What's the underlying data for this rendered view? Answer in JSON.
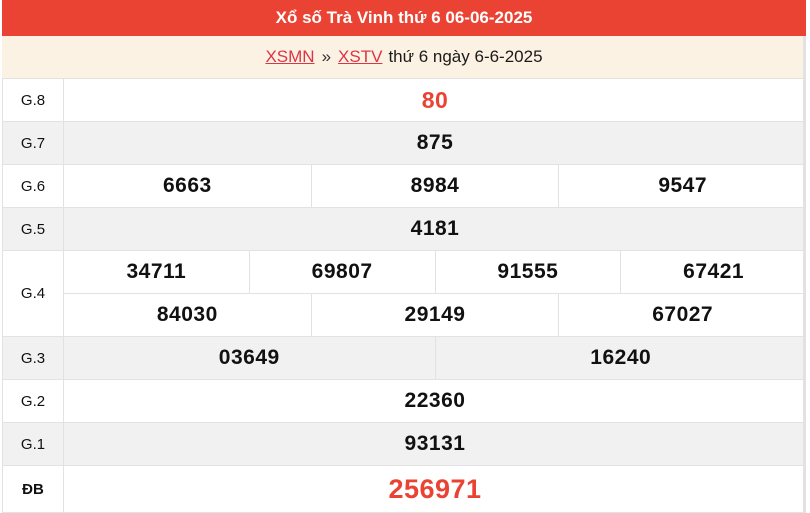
{
  "header": {
    "title": "Xổ số Trà Vinh thứ 6 06-06-2025"
  },
  "breadcrumb": {
    "links": [
      {
        "label": "XSMN"
      },
      {
        "label": "XSTV"
      }
    ],
    "separator": "»",
    "suffix": "thứ 6 ngày 6-6-2025"
  },
  "colors": {
    "header_red": "#ea4334",
    "highlight_red": "#ea4334",
    "link_red": "#dc3545",
    "breadcrumb_bg": "#fcf2e4",
    "alt_row_bg": "#f1f1f1",
    "border": "#e2e2e2"
  },
  "results": {
    "rows": [
      {
        "label": "G.8",
        "groups": [
          [
            "80"
          ]
        ],
        "highlight": true
      },
      {
        "label": "G.7",
        "groups": [
          [
            "875"
          ]
        ]
      },
      {
        "label": "G.6",
        "groups": [
          [
            "6663",
            "8984",
            "9547"
          ]
        ]
      },
      {
        "label": "G.5",
        "groups": [
          [
            "4181"
          ]
        ]
      },
      {
        "label": "G.4",
        "groups": [
          [
            "34711",
            "69807",
            "91555",
            "67421"
          ],
          [
            "84030",
            "29149",
            "67027"
          ]
        ]
      },
      {
        "label": "G.3",
        "groups": [
          [
            "03649",
            "16240"
          ]
        ]
      },
      {
        "label": "G.2",
        "groups": [
          [
            "22360"
          ]
        ]
      },
      {
        "label": "G.1",
        "groups": [
          [
            "93131"
          ]
        ]
      },
      {
        "label": "ĐB",
        "groups": [
          [
            "256971"
          ]
        ],
        "highlight": true
      }
    ]
  }
}
